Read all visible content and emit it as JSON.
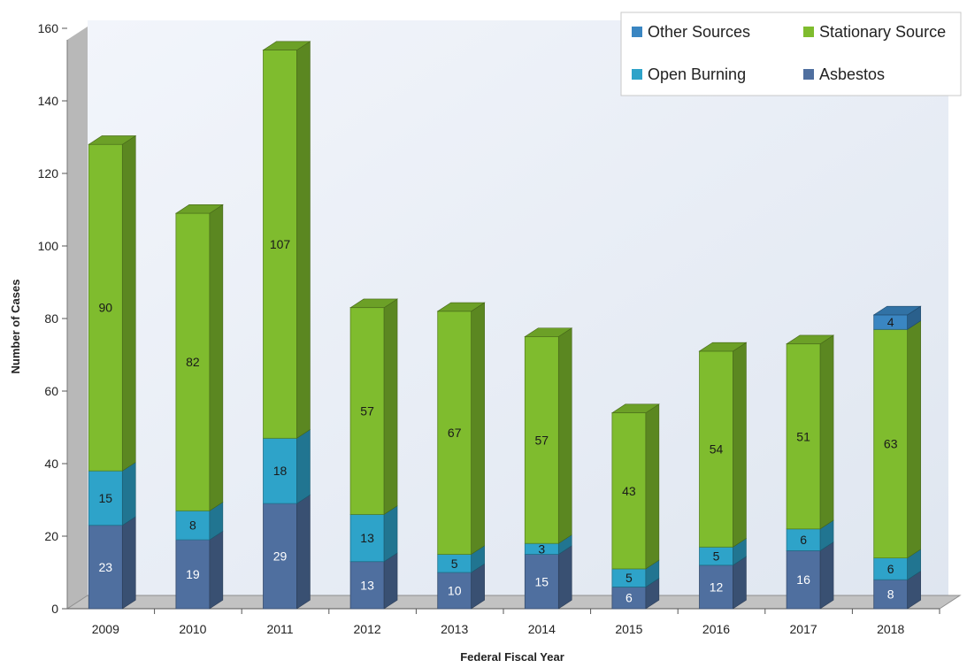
{
  "chart_data": {
    "type": "bar",
    "stacked": true,
    "three_d": true,
    "title": "",
    "xlabel": "Federal Fiscal Year",
    "ylabel": "Number of Cases",
    "ylim": [
      0,
      160
    ],
    "yticks": [
      "0",
      "20",
      "40",
      "60",
      "80",
      "100",
      "120",
      "140",
      "160"
    ],
    "grid": false,
    "legend_position": "top-right",
    "categories": [
      "2009",
      "2010",
      "2011",
      "2012",
      "2013",
      "2014",
      "2015",
      "2016",
      "2017",
      "2018"
    ],
    "series": [
      {
        "name": "Asbestos",
        "color": "#4f6f9f",
        "values": [
          23,
          19,
          29,
          13,
          10,
          15,
          6,
          12,
          16,
          8
        ]
      },
      {
        "name": "Open Burning",
        "color": "#2ea3c9",
        "values": [
          15,
          8,
          18,
          13,
          5,
          3,
          5,
          5,
          6,
          6
        ]
      },
      {
        "name": "Stationary Source",
        "color": "#7fbc2e",
        "values": [
          90,
          82,
          107,
          57,
          67,
          57,
          43,
          54,
          51,
          63
        ]
      },
      {
        "name": "Other Sources",
        "color": "#3a86c2",
        "values": [
          0,
          0,
          0,
          0,
          0,
          0,
          0,
          0,
          0,
          4
        ]
      }
    ],
    "legend_order": [
      "Other Sources",
      "Stationary Source",
      "Open Burning",
      "Asbestos"
    ]
  }
}
